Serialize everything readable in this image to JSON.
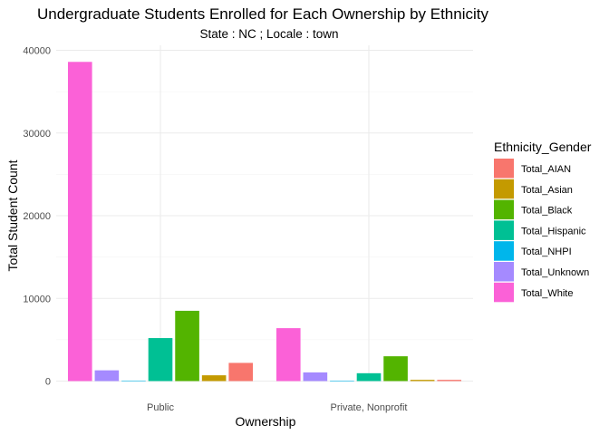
{
  "chart_data": {
    "type": "bar",
    "title": "Undergraduate Students Enrolled for Each Ownership by Ethnicity",
    "subtitle": "State : NC ; Locale : town",
    "xlabel": "Ownership",
    "ylabel": "Total Student Count",
    "ylim": [
      0,
      40000
    ],
    "yticks": [
      0,
      10000,
      20000,
      30000,
      40000
    ],
    "categories": [
      "Public",
      "Private, Nonprofit"
    ],
    "legend_title": "Ethnicity_Gender",
    "legend_position": "right",
    "grid": true,
    "series": [
      {
        "name": "Total_AIAN",
        "color": "#F8766D",
        "values": [
          2200,
          150
        ]
      },
      {
        "name": "Total_Asian",
        "color": "#C49A00",
        "values": [
          700,
          150
        ]
      },
      {
        "name": "Total_Black",
        "color": "#53B400",
        "values": [
          8500,
          3000
        ]
      },
      {
        "name": "Total_Hispanic",
        "color": "#00C094",
        "values": [
          5200,
          950
        ]
      },
      {
        "name": "Total_NHPI",
        "color": "#00B6EB",
        "values": [
          60,
          20
        ]
      },
      {
        "name": "Total_Unknown",
        "color": "#A58AFF",
        "values": [
          1300,
          1050
        ]
      },
      {
        "name": "Total_White",
        "color": "#FB61D7",
        "values": [
          38600,
          6400
        ]
      }
    ],
    "draw_order": [
      "Total_White",
      "Total_Unknown",
      "Total_NHPI",
      "Total_Hispanic",
      "Total_Black",
      "Total_Asian",
      "Total_AIAN"
    ]
  }
}
